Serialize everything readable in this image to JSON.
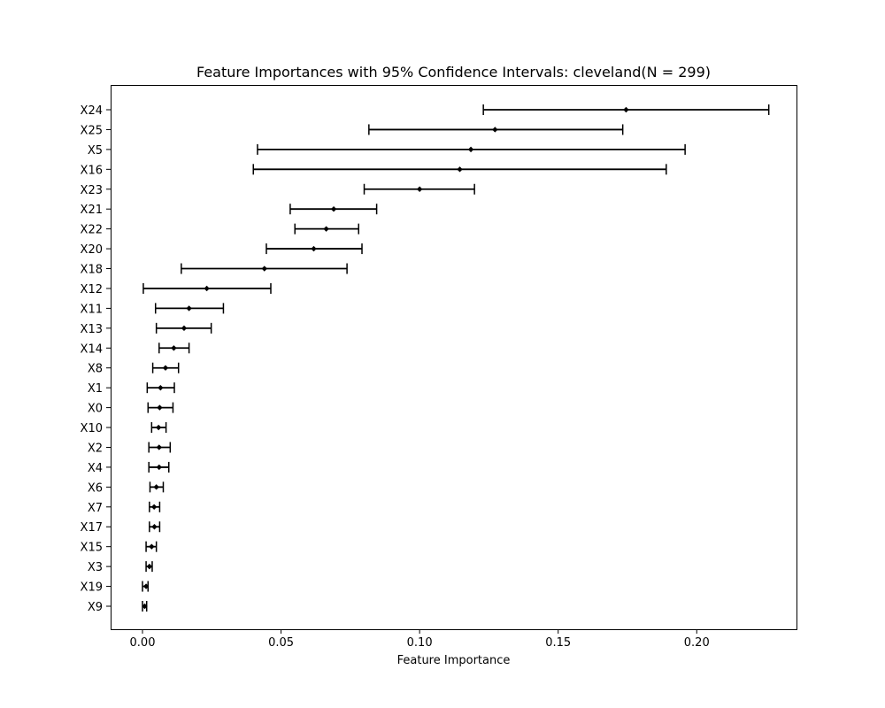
{
  "chart_data": {
    "type": "errorbar",
    "title": "Feature Importances with 95% Confidence Intervals: cleveland(N = 299)",
    "xlabel": "Feature Importance",
    "ylabel": "",
    "xlim": [
      -0.0115,
      0.236
    ],
    "xticks": [
      0.0,
      0.05,
      0.1,
      0.15,
      0.2
    ],
    "xtick_labels": [
      "0.00",
      "0.05",
      "0.10",
      "0.15",
      "0.20"
    ],
    "grid": false,
    "legend": "none",
    "color": "#000000",
    "features": [
      {
        "name": "X24",
        "value": 0.1745,
        "lower": 0.123,
        "upper": 0.226
      },
      {
        "name": "X25",
        "value": 0.1272,
        "lower": 0.0817,
        "upper": 0.1733
      },
      {
        "name": "X5",
        "value": 0.1185,
        "lower": 0.0415,
        "upper": 0.1958
      },
      {
        "name": "X16",
        "value": 0.1145,
        "lower": 0.04,
        "upper": 0.189
      },
      {
        "name": "X23",
        "value": 0.1,
        "lower": 0.08,
        "upper": 0.1198
      },
      {
        "name": "X21",
        "value": 0.069,
        "lower": 0.0533,
        "upper": 0.0845
      },
      {
        "name": "X22",
        "value": 0.0663,
        "lower": 0.055,
        "upper": 0.078
      },
      {
        "name": "X20",
        "value": 0.0618,
        "lower": 0.0447,
        "upper": 0.0792
      },
      {
        "name": "X18",
        "value": 0.044,
        "lower": 0.014,
        "upper": 0.0738
      },
      {
        "name": "X12",
        "value": 0.0232,
        "lower": 0.0003,
        "upper": 0.0463
      },
      {
        "name": "X11",
        "value": 0.0168,
        "lower": 0.0047,
        "upper": 0.0292
      },
      {
        "name": "X13",
        "value": 0.015,
        "lower": 0.005,
        "upper": 0.0248
      },
      {
        "name": "X14",
        "value": 0.0113,
        "lower": 0.006,
        "upper": 0.0168
      },
      {
        "name": "X8",
        "value": 0.0083,
        "lower": 0.0037,
        "upper": 0.013
      },
      {
        "name": "X1",
        "value": 0.0065,
        "lower": 0.0017,
        "upper": 0.0115
      },
      {
        "name": "X0",
        "value": 0.0062,
        "lower": 0.002,
        "upper": 0.011
      },
      {
        "name": "X10",
        "value": 0.0058,
        "lower": 0.0033,
        "upper": 0.0085
      },
      {
        "name": "X2",
        "value": 0.006,
        "lower": 0.0023,
        "upper": 0.01
      },
      {
        "name": "X4",
        "value": 0.006,
        "lower": 0.0023,
        "upper": 0.0095
      },
      {
        "name": "X6",
        "value": 0.005,
        "lower": 0.0027,
        "upper": 0.0075
      },
      {
        "name": "X7",
        "value": 0.0042,
        "lower": 0.0025,
        "upper": 0.0062
      },
      {
        "name": "X17",
        "value": 0.0043,
        "lower": 0.0025,
        "upper": 0.0062
      },
      {
        "name": "X15",
        "value": 0.0033,
        "lower": 0.0013,
        "upper": 0.005
      },
      {
        "name": "X3",
        "value": 0.0025,
        "lower": 0.0013,
        "upper": 0.0035
      },
      {
        "name": "X19",
        "value": 0.0013,
        "lower": 0.0,
        "upper": 0.002
      },
      {
        "name": "X9",
        "value": 0.0008,
        "lower": 0.0,
        "upper": 0.0015
      }
    ]
  }
}
